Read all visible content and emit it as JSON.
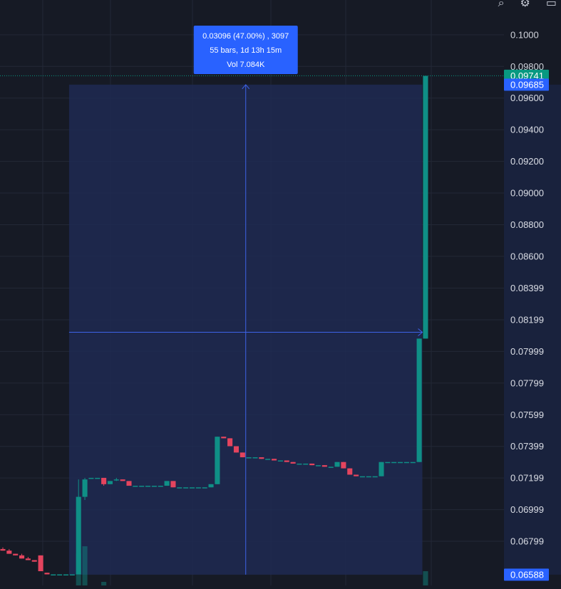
{
  "colors": {
    "background": "#161a25",
    "grid": "#232836",
    "up": "#0f8f86",
    "down": "#e4445e",
    "measure_fill": "#1e2a52",
    "measure_line": "#3d63e8",
    "label_bg": "#2962ff",
    "last_price_bg": "#089981"
  },
  "icons": [
    "search-icon",
    "settings-icon",
    "screenshot-icon"
  ],
  "chart_data": {
    "type": "candlestick",
    "y_axis": {
      "ylim": [
        0.0652,
        0.1022
      ],
      "tick_labels": [
        "0.1000",
        "0.09800",
        "0.09600",
        "0.09400",
        "0.09200",
        "0.09000",
        "0.08800",
        "0.08600",
        "0.08399",
        "0.08199",
        "0.07999",
        "0.07799",
        "0.07599",
        "0.07399",
        "0.07199",
        "0.06999",
        "0.06799"
      ],
      "tick_values": [
        0.1,
        0.098,
        0.096,
        0.094,
        0.092,
        0.09,
        0.088,
        0.086,
        0.08399,
        0.08199,
        0.07999,
        0.07799,
        0.07599,
        0.07399,
        0.07199,
        0.06999,
        0.06799
      ]
    },
    "price_tags": {
      "last_price": {
        "label": "0.09741",
        "value": 0.09741
      },
      "measure_top": {
        "label": "0.09685",
        "value": 0.09685
      },
      "measure_bottom": {
        "label": "0.06588",
        "value": 0.06588
      }
    },
    "candles": [
      {
        "o": 0.0675,
        "h": 0.0676,
        "l": 0.0674,
        "c": 0.0674
      },
      {
        "o": 0.0674,
        "h": 0.0675,
        "l": 0.0672,
        "c": 0.0672
      },
      {
        "o": 0.0672,
        "h": 0.0672,
        "l": 0.0671,
        "c": 0.0671
      },
      {
        "o": 0.0671,
        "h": 0.0672,
        "l": 0.0669,
        "c": 0.0669
      },
      {
        "o": 0.0669,
        "h": 0.067,
        "l": 0.0668,
        "c": 0.0668
      },
      {
        "o": 0.0668,
        "h": 0.0668,
        "l": 0.0667,
        "c": 0.0667
      },
      {
        "o": 0.0671,
        "h": 0.0671,
        "l": 0.0661,
        "c": 0.0661
      },
      {
        "o": 0.066,
        "h": 0.066,
        "l": 0.0659,
        "c": 0.0659
      },
      {
        "o": 0.0659,
        "h": 0.0659,
        "l": 0.0659,
        "c": 0.0659
      },
      {
        "o": 0.0659,
        "h": 0.0659,
        "l": 0.0659,
        "c": 0.0659
      },
      {
        "o": 0.0659,
        "h": 0.0659,
        "l": 0.0659,
        "c": 0.0659
      },
      {
        "o": 0.0659,
        "h": 0.0659,
        "l": 0.0659,
        "c": 0.0659
      },
      {
        "o": 0.0659,
        "h": 0.0719,
        "l": 0.0659,
        "c": 0.0708
      },
      {
        "o": 0.0708,
        "h": 0.072,
        "l": 0.0706,
        "c": 0.0719
      },
      {
        "o": 0.072,
        "h": 0.072,
        "l": 0.072,
        "c": 0.072
      },
      {
        "o": 0.072,
        "h": 0.072,
        "l": 0.072,
        "c": 0.072
      },
      {
        "o": 0.072,
        "h": 0.072,
        "l": 0.0715,
        "c": 0.0716
      },
      {
        "o": 0.0716,
        "h": 0.0718,
        "l": 0.0716,
        "c": 0.0718
      },
      {
        "o": 0.0719,
        "h": 0.072,
        "l": 0.0718,
        "c": 0.0719
      },
      {
        "o": 0.0719,
        "h": 0.0719,
        "l": 0.0718,
        "c": 0.0718
      },
      {
        "o": 0.0718,
        "h": 0.0718,
        "l": 0.0715,
        "c": 0.0715
      },
      {
        "o": 0.0715,
        "h": 0.0715,
        "l": 0.0715,
        "c": 0.0715
      },
      {
        "o": 0.0715,
        "h": 0.0715,
        "l": 0.0715,
        "c": 0.0715
      },
      {
        "o": 0.0715,
        "h": 0.0715,
        "l": 0.0715,
        "c": 0.0715
      },
      {
        "o": 0.0715,
        "h": 0.0715,
        "l": 0.0715,
        "c": 0.0715
      },
      {
        "o": 0.0715,
        "h": 0.0715,
        "l": 0.0715,
        "c": 0.0715
      },
      {
        "o": 0.0715,
        "h": 0.0718,
        "l": 0.0715,
        "c": 0.0718
      },
      {
        "o": 0.0718,
        "h": 0.0718,
        "l": 0.0714,
        "c": 0.0714
      },
      {
        "o": 0.0714,
        "h": 0.0714,
        "l": 0.0714,
        "c": 0.0714
      },
      {
        "o": 0.0714,
        "h": 0.0714,
        "l": 0.0714,
        "c": 0.0714
      },
      {
        "o": 0.0714,
        "h": 0.0714,
        "l": 0.0714,
        "c": 0.0714
      },
      {
        "o": 0.0714,
        "h": 0.0714,
        "l": 0.0714,
        "c": 0.0714
      },
      {
        "o": 0.0714,
        "h": 0.0714,
        "l": 0.0714,
        "c": 0.0714
      },
      {
        "o": 0.0714,
        "h": 0.0716,
        "l": 0.0714,
        "c": 0.0716
      },
      {
        "o": 0.0716,
        "h": 0.0746,
        "l": 0.0716,
        "c": 0.0746
      },
      {
        "o": 0.0746,
        "h": 0.0746,
        "l": 0.0745,
        "c": 0.0745
      },
      {
        "o": 0.0745,
        "h": 0.0745,
        "l": 0.074,
        "c": 0.074
      },
      {
        "o": 0.074,
        "h": 0.074,
        "l": 0.0736,
        "c": 0.0736
      },
      {
        "o": 0.0736,
        "h": 0.0736,
        "l": 0.0733,
        "c": 0.0733
      },
      {
        "o": 0.0733,
        "h": 0.0733,
        "l": 0.0733,
        "c": 0.0733
      },
      {
        "o": 0.0733,
        "h": 0.0733,
        "l": 0.0733,
        "c": 0.0733
      },
      {
        "o": 0.0733,
        "h": 0.0733,
        "l": 0.0732,
        "c": 0.0732
      },
      {
        "o": 0.0732,
        "h": 0.0732,
        "l": 0.0732,
        "c": 0.0732
      },
      {
        "o": 0.0732,
        "h": 0.0732,
        "l": 0.0731,
        "c": 0.0731
      },
      {
        "o": 0.0731,
        "h": 0.0731,
        "l": 0.0731,
        "c": 0.0731
      },
      {
        "o": 0.0731,
        "h": 0.0731,
        "l": 0.073,
        "c": 0.073
      },
      {
        "o": 0.073,
        "h": 0.073,
        "l": 0.0729,
        "c": 0.0729
      },
      {
        "o": 0.0729,
        "h": 0.0729,
        "l": 0.0729,
        "c": 0.0729
      },
      {
        "o": 0.0729,
        "h": 0.0729,
        "l": 0.0729,
        "c": 0.0729
      },
      {
        "o": 0.0729,
        "h": 0.0729,
        "l": 0.0728,
        "c": 0.0728
      },
      {
        "o": 0.0728,
        "h": 0.0728,
        "l": 0.0728,
        "c": 0.0728
      },
      {
        "o": 0.0728,
        "h": 0.0728,
        "l": 0.0727,
        "c": 0.0727
      },
      {
        "o": 0.0727,
        "h": 0.0727,
        "l": 0.0727,
        "c": 0.0727
      },
      {
        "o": 0.0727,
        "h": 0.073,
        "l": 0.0727,
        "c": 0.073
      },
      {
        "o": 0.073,
        "h": 0.073,
        "l": 0.0726,
        "c": 0.0726
      },
      {
        "o": 0.0726,
        "h": 0.0726,
        "l": 0.0722,
        "c": 0.0722
      },
      {
        "o": 0.0722,
        "h": 0.0722,
        "l": 0.0721,
        "c": 0.0721
      },
      {
        "o": 0.0721,
        "h": 0.0721,
        "l": 0.0721,
        "c": 0.0721
      },
      {
        "o": 0.0721,
        "h": 0.0721,
        "l": 0.0721,
        "c": 0.0721
      },
      {
        "o": 0.0721,
        "h": 0.0721,
        "l": 0.0721,
        "c": 0.0721
      },
      {
        "o": 0.0721,
        "h": 0.073,
        "l": 0.0721,
        "c": 0.073
      },
      {
        "o": 0.073,
        "h": 0.073,
        "l": 0.073,
        "c": 0.073
      },
      {
        "o": 0.073,
        "h": 0.073,
        "l": 0.073,
        "c": 0.073
      },
      {
        "o": 0.073,
        "h": 0.073,
        "l": 0.073,
        "c": 0.073
      },
      {
        "o": 0.073,
        "h": 0.073,
        "l": 0.073,
        "c": 0.073
      },
      {
        "o": 0.073,
        "h": 0.073,
        "l": 0.073,
        "c": 0.073
      },
      {
        "o": 0.073,
        "h": 0.0808,
        "l": 0.073,
        "c": 0.0808
      },
      {
        "o": 0.0808,
        "h": 0.0974,
        "l": 0.0808,
        "c": 0.0974
      }
    ],
    "measure": {
      "start_candle": 11,
      "end_candle": 66,
      "from_price": 0.06588,
      "to_price": 0.09685,
      "label_line1": "0.03096 (47.00%) , 3097",
      "label_line2": "55 bars, 1d 13h 15m",
      "label_line3": "Vol 7.084K"
    },
    "volume": [
      {
        "candle": 12,
        "value": 0.45,
        "dir": "up"
      },
      {
        "candle": 13,
        "value": 0.55,
        "dir": "up"
      },
      {
        "candle": 16,
        "value": 0.05,
        "dir": "up"
      },
      {
        "candle": 67,
        "value": 0.2,
        "dir": "up"
      }
    ]
  }
}
